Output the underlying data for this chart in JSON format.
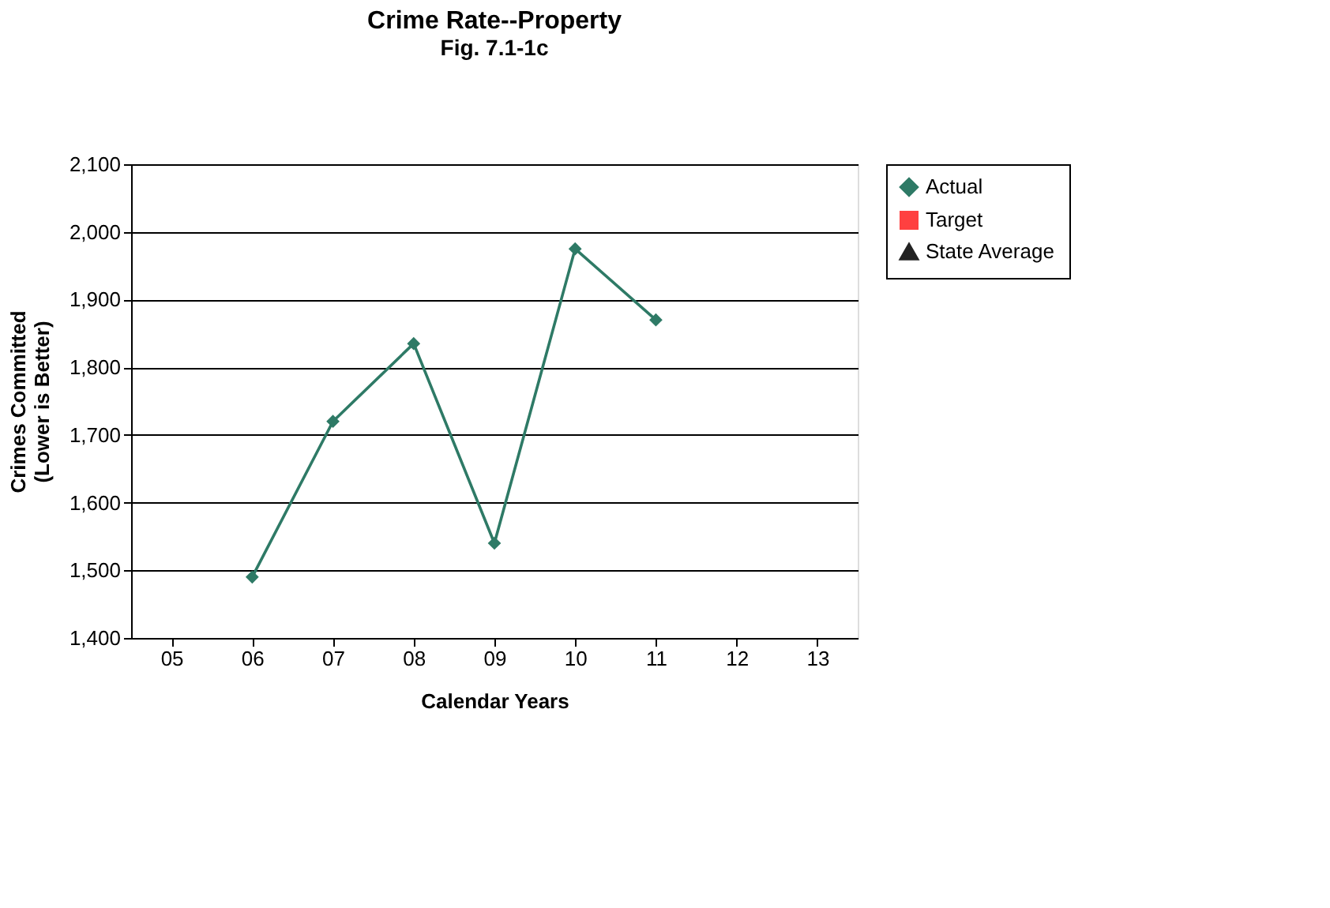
{
  "chart_data": {
    "type": "line",
    "title": "Crime Rate--Property",
    "subtitle": "Fig. 7.1-1c",
    "xlabel": "Calendar Years",
    "ylabel": "Crimes Committed\n(Lower is Better)",
    "categories": [
      "05",
      "06",
      "07",
      "08",
      "09",
      "10",
      "11",
      "12",
      "13"
    ],
    "series": [
      {
        "name": "Actual",
        "color": "#2e7a66",
        "marker": "diamond",
        "values": [
          null,
          1490,
          1720,
          1835,
          1540,
          1975,
          1870,
          null,
          null
        ]
      },
      {
        "name": "Target",
        "color": "#ff4040",
        "marker": "square",
        "values": [
          null,
          null,
          null,
          null,
          null,
          null,
          null,
          null,
          null
        ]
      },
      {
        "name": "State Average",
        "color": "#222222",
        "marker": "triangle",
        "values": [
          null,
          null,
          null,
          null,
          null,
          null,
          null,
          null,
          null
        ]
      }
    ],
    "ylim": [
      1400,
      2100
    ],
    "yticks": [
      {
        "value": 1400,
        "label": "1,400"
      },
      {
        "value": 1500,
        "label": "1,500"
      },
      {
        "value": 1600,
        "label": "1,600"
      },
      {
        "value": 1700,
        "label": "1,700"
      },
      {
        "value": 1800,
        "label": "1,800"
      },
      {
        "value": 1900,
        "label": "1,900"
      },
      {
        "value": 2000,
        "label": "2,000"
      },
      {
        "value": 2100,
        "label": "2,100"
      }
    ],
    "grid": "y",
    "legend": "right"
  }
}
